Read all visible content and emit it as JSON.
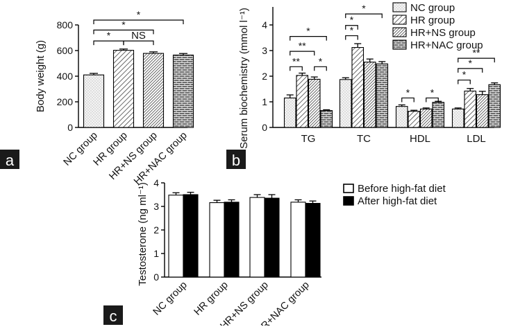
{
  "chart_data": [
    {
      "type": "bar",
      "panel": "a",
      "ylabel": "Body weight (g)",
      "ylim": [
        0,
        800
      ],
      "yticks": [
        0,
        200,
        400,
        600,
        800
      ],
      "categories": [
        "NC group",
        "HR group",
        "HR+NS group",
        "HR+NAC group"
      ],
      "values": [
        410,
        602,
        578,
        565
      ],
      "errors": [
        12,
        10,
        12,
        12
      ],
      "patterns": [
        "dots",
        "diag-light",
        "diag-dense",
        "brick"
      ],
      "annotations": [
        {
          "from": 0,
          "to": 1,
          "y": 675,
          "text": "*"
        },
        {
          "from": 1,
          "to": 2,
          "y": 675,
          "text": "NS"
        },
        {
          "from": 0,
          "to": 2,
          "y": 760,
          "text": "*"
        },
        {
          "from": 0,
          "to": 3,
          "y": 838,
          "text": "*"
        }
      ]
    },
    {
      "type": "bar",
      "panel": "b",
      "ylabel": "Serum biochemistry (mmol l⁻¹)",
      "ylim": [
        0,
        4
      ],
      "yticks": [
        0,
        1,
        2,
        3,
        4
      ],
      "categories": [
        "TG",
        "TC",
        "HDL",
        "LDL"
      ],
      "series": [
        {
          "name": "NC group",
          "pattern": "dots",
          "values": [
            1.15,
            1.87,
            0.82,
            0.72
          ],
          "errors": [
            0.12,
            0.07,
            0.06,
            0.04
          ]
        },
        {
          "name": "HR group",
          "pattern": "diag-light",
          "values": [
            2.03,
            3.12,
            0.63,
            1.42
          ],
          "errors": [
            0.09,
            0.15,
            0.04,
            0.1
          ]
        },
        {
          "name": "HR+NS group",
          "pattern": "diag-dense",
          "values": [
            1.88,
            2.55,
            0.72,
            1.28
          ],
          "errors": [
            0.09,
            0.12,
            0.04,
            0.13
          ]
        },
        {
          "name": "HR+NAC group",
          "pattern": "brick",
          "values": [
            0.66,
            2.48,
            0.98,
            1.67
          ],
          "errors": [
            0.03,
            0.09,
            0.04,
            0.07
          ]
        }
      ],
      "legend_position": "top-right",
      "annotations": [
        {
          "group": 0,
          "from": 0,
          "to": 1,
          "y": 2.37,
          "text": "**"
        },
        {
          "group": 0,
          "from": 2,
          "to": 3,
          "y": 2.37,
          "text": "*"
        },
        {
          "group": 0,
          "from": 0,
          "to": 2,
          "y": 2.97,
          "text": "**"
        },
        {
          "group": 0,
          "from": 0,
          "to": 3,
          "y": 3.55,
          "text": "*"
        },
        {
          "group": 1,
          "from": 0,
          "to": 1,
          "y": 3.58,
          "text": "*"
        },
        {
          "group": 1,
          "from": 0,
          "to": 1,
          "y": 3.98,
          "text": "*"
        },
        {
          "group": 1,
          "from": 0,
          "to": 3,
          "y": 4.43,
          "text": "*"
        },
        {
          "group": 2,
          "from": 0,
          "to": 1,
          "y": 1.15,
          "text": "*"
        },
        {
          "group": 2,
          "from": 2,
          "to": 3,
          "y": 1.15,
          "text": "*"
        },
        {
          "group": 3,
          "from": 0,
          "to": 1,
          "y": 1.85,
          "text": "*"
        },
        {
          "group": 3,
          "from": 0,
          "to": 2,
          "y": 2.3,
          "text": "*"
        },
        {
          "group": 3,
          "from": 0,
          "to": 3,
          "y": 2.7,
          "text": "**"
        }
      ]
    },
    {
      "type": "bar",
      "panel": "c",
      "ylabel": "Testosterone (ng ml⁻¹)",
      "ylim": [
        0,
        4
      ],
      "yticks": [
        0,
        1,
        2,
        3,
        4
      ],
      "categories": [
        "NC group",
        "HR group",
        "HR+NS group",
        "HR+NAC group"
      ],
      "series": [
        {
          "name": "Before high-fat diet",
          "color": "#ffffff",
          "values": [
            3.48,
            3.16,
            3.38,
            3.18
          ],
          "errors": [
            0.1,
            0.1,
            0.12,
            0.1
          ]
        },
        {
          "name": "After high-fat diet",
          "color": "#000000",
          "values": [
            3.5,
            3.18,
            3.35,
            3.13
          ],
          "errors": [
            0.1,
            0.1,
            0.15,
            0.1
          ]
        }
      ],
      "legend_position": "top-right"
    }
  ],
  "panel_labels": {
    "a": "a",
    "b": "b",
    "c": "c"
  }
}
